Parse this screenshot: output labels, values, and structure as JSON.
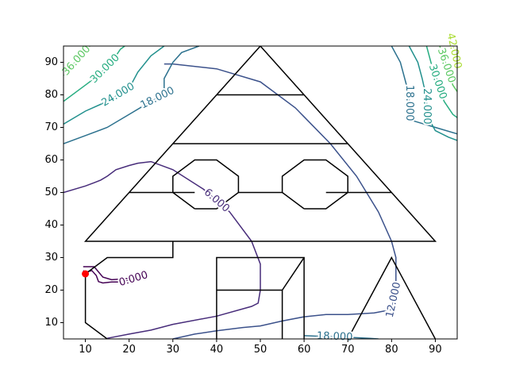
{
  "chart_data": {
    "type": "contour",
    "title": "",
    "xlabel": "",
    "ylabel": "",
    "xlim": [
      5,
      95
    ],
    "ylim": [
      5,
      95
    ],
    "x_ticks": [
      10,
      20,
      30,
      40,
      50,
      60,
      70,
      80,
      90
    ],
    "y_ticks": [
      10,
      20,
      30,
      40,
      50,
      60,
      70,
      80,
      90
    ],
    "tick_labels_x": [
      "10",
      "20",
      "30",
      "40",
      "50",
      "60",
      "70",
      "80",
      "90"
    ],
    "tick_labels_y": [
      "10",
      "20",
      "30",
      "40",
      "50",
      "60",
      "70",
      "80",
      "90"
    ],
    "grid": false,
    "legend": "none",
    "contour_levels": [
      {
        "level": 0,
        "label": "0.000",
        "color": "#440154",
        "paths": [
          [
            [
              9.5,
              27.2
            ],
            [
              12,
              27.2
            ],
            [
              14,
              24
            ],
            [
              16,
              23.2
            ],
            [
              18,
              23.4
            ],
            [
              20,
              23.6
            ],
            [
              21,
              24
            ],
            [
              22,
              23.8
            ],
            [
              20,
              23
            ],
            [
              18,
              22.5
            ],
            [
              16,
              22.5
            ],
            [
              14,
              22.2
            ],
            [
              13,
              22.6
            ],
            [
              12.5,
              24.5
            ],
            [
              11.5,
              26
            ],
            [
              10,
              25.5
            ],
            [
              9.5,
              26
            ]
          ]
        ]
      },
      {
        "level": 6,
        "label": "6.000",
        "color": "#472c7a",
        "paths": [
          [
            [
              15,
              5.2
            ],
            [
              20,
              6.5
            ],
            [
              25,
              7.7
            ],
            [
              30,
              9.5
            ],
            [
              40,
              12
            ],
            [
              48,
              15
            ],
            [
              49.5,
              16
            ],
            [
              50,
              20
            ],
            [
              50,
              28
            ],
            [
              48,
              35
            ],
            [
              43,
              44
            ],
            [
              37,
              51
            ],
            [
              30,
              57
            ],
            [
              25,
              59.5
            ],
            [
              22,
              59
            ],
            [
              20,
              58.3
            ],
            [
              17,
              57
            ],
            [
              15,
              55
            ],
            [
              13.5,
              53.8
            ],
            [
              12,
              53
            ],
            [
              10,
              52
            ],
            [
              5,
              50
            ]
          ]
        ]
      },
      {
        "level": 12,
        "label": "12.000",
        "color": "#3b518b",
        "paths": [
          [
            [
              30,
              5
            ],
            [
              35,
              6.5
            ],
            [
              40,
              7.5
            ],
            [
              46,
              8.5
            ],
            [
              50,
              9
            ],
            [
              55,
              10.5
            ],
            [
              60,
              11.8
            ],
            [
              65,
              12.5
            ],
            [
              70,
              12.5
            ],
            [
              76,
              13
            ],
            [
              80,
              14
            ],
            [
              81,
              20
            ],
            [
              81,
              30
            ],
            [
              80,
              35
            ],
            [
              77,
              44
            ],
            [
              72,
              55
            ],
            [
              66,
              65
            ],
            [
              58,
              76
            ],
            [
              50,
              84
            ],
            [
              40,
              88
            ],
            [
              30,
              89.5
            ],
            [
              28,
              89.5
            ]
          ]
        ]
      },
      {
        "level": 18,
        "label": "18.000",
        "color": "#2c718e",
        "paths": [
          [
            [
              5,
              65
            ],
            [
              10,
              67.5
            ],
            [
              15,
              70
            ],
            [
              20,
              74
            ],
            [
              25,
              78
            ],
            [
              28,
              80
            ],
            [
              28,
              85
            ],
            [
              30,
              90
            ],
            [
              32,
              93
            ],
            [
              36,
              95
            ]
          ],
          [
            [
              60,
              6
            ],
            [
              64,
              5.8
            ],
            [
              70,
              5.5
            ],
            [
              75,
              5.2
            ],
            [
              77,
              5
            ]
          ],
          [
            [
              80,
              95
            ],
            [
              82,
              90
            ],
            [
              83,
              85
            ],
            [
              84,
              80
            ],
            [
              84,
              75
            ],
            [
              85,
              72
            ],
            [
              90,
              70
            ],
            [
              95,
              68
            ]
          ]
        ]
      },
      {
        "level": 24,
        "label": "24.000",
        "color": "#21908d",
        "paths": [
          [
            [
              5,
              71
            ],
            [
              10,
              75
            ],
            [
              15,
              78
            ],
            [
              20,
              82
            ],
            [
              22,
              87
            ],
            [
              25,
              92
            ],
            [
              28,
              95
            ]
          ],
          [
            [
              84,
              95
            ],
            [
              86,
              90
            ],
            [
              87,
              85
            ],
            [
              88,
              79
            ],
            [
              88,
              74
            ],
            [
              90,
              69
            ],
            [
              93,
              67
            ],
            [
              95,
              66
            ]
          ]
        ]
      },
      {
        "level": 30,
        "label": "30.000",
        "color": "#27ad81",
        "paths": [
          [
            [
              5,
              78
            ],
            [
              10,
              83
            ],
            [
              13,
              86
            ],
            [
              16,
              90
            ],
            [
              18,
              94
            ],
            [
              19,
              95
            ]
          ],
          [
            [
              88,
              95
            ],
            [
              89,
              90
            ],
            [
              90,
              86
            ],
            [
              91,
              82
            ],
            [
              92,
              78
            ],
            [
              94,
              74
            ],
            [
              95,
              73
            ]
          ]
        ]
      },
      {
        "level": 36,
        "label": "36.000",
        "color": "#5cc863",
        "paths": [
          [
            [
              5,
              86
            ],
            [
              7,
              89
            ],
            [
              9,
              92
            ],
            [
              11,
              95
            ]
          ],
          [
            [
              91,
              95
            ],
            [
              92,
              91
            ],
            [
              93,
              87
            ],
            [
              94,
              83
            ],
            [
              95,
              81
            ]
          ]
        ]
      },
      {
        "level": 42,
        "label": "42.000",
        "color": "#aadc32",
        "paths": [
          [
            [
              94,
              95
            ],
            [
              94.5,
              92
            ],
            [
              95,
              90
            ]
          ]
        ]
      }
    ],
    "point": {
      "x": 10,
      "y": 25,
      "color": "#ff0000"
    },
    "overlay_lines": [
      [
        [
          50,
          95
        ],
        [
          10,
          35
        ],
        [
          90,
          35
        ],
        [
          50,
          95
        ]
      ],
      [
        [
          40,
          80
        ],
        [
          60,
          80
        ]
      ],
      [
        [
          30,
          65
        ],
        [
          70,
          65
        ]
      ],
      [
        [
          20,
          50
        ],
        [
          35,
          50
        ]
      ],
      [
        [
          45,
          50
        ],
        [
          55,
          50
        ]
      ],
      [
        [
          65,
          50
        ],
        [
          80,
          50
        ]
      ],
      [
        [
          35,
          45
        ],
        [
          40,
          45
        ],
        [
          45,
          50
        ],
        [
          45,
          55
        ],
        [
          40,
          60
        ],
        [
          35,
          60
        ],
        [
          30,
          55
        ],
        [
          30,
          50
        ],
        [
          35,
          45
        ]
      ],
      [
        [
          60,
          45
        ],
        [
          65,
          45
        ],
        [
          70,
          50
        ],
        [
          70,
          55
        ],
        [
          65,
          60
        ],
        [
          60,
          60
        ],
        [
          55,
          55
        ],
        [
          55,
          50
        ],
        [
          60,
          45
        ]
      ],
      [
        [
          30,
          35
        ],
        [
          30,
          30
        ],
        [
          15,
          30
        ],
        [
          10,
          25
        ],
        [
          10,
          10
        ],
        [
          15,
          5
        ]
      ],
      [
        [
          40,
          5
        ],
        [
          40,
          30
        ],
        [
          60,
          30
        ],
        [
          60,
          5
        ]
      ],
      [
        [
          40,
          20
        ],
        [
          55,
          20
        ],
        [
          60,
          30
        ]
      ],
      [
        [
          55,
          20
        ],
        [
          55,
          5
        ]
      ],
      [
        [
          70,
          5
        ],
        [
          80,
          30
        ],
        [
          90,
          5
        ]
      ]
    ]
  }
}
